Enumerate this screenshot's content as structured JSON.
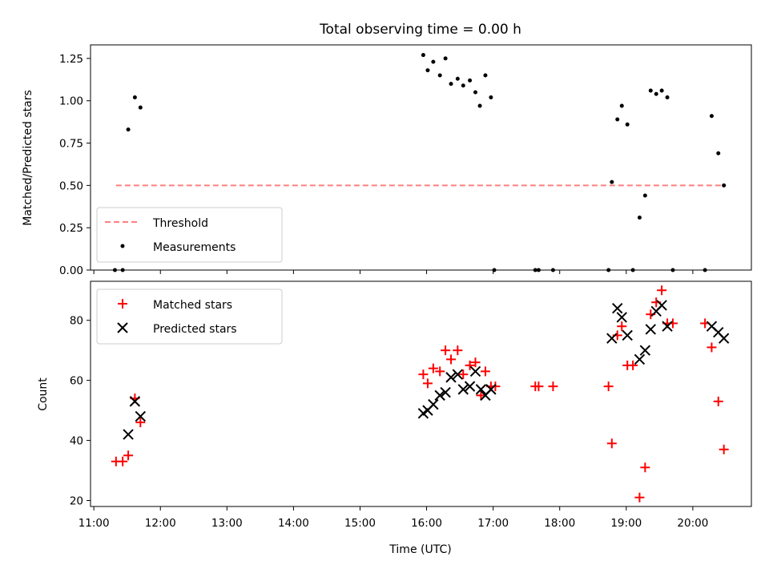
{
  "chart_data": [
    {
      "type": "scatter",
      "title": "Total observing time = 0.00 h",
      "xlabel": "",
      "ylabel": "Matched/Predicted stars",
      "xlim": [
        "11:00",
        "21:00"
      ],
      "ylim": [
        0,
        1.33
      ],
      "yticks": [
        "0.00",
        "0.25",
        "0.50",
        "0.75",
        "1.00",
        "1.25"
      ],
      "legend_position": "lower-left",
      "threshold": {
        "name": "Threshold",
        "color": "#ff7f7f",
        "y": 0.5,
        "x_start": "11:20",
        "x_end": "20:30"
      },
      "series": [
        {
          "name": "Measurements",
          "color": "#000000",
          "points": [
            [
              "11:19",
              0.0
            ],
            [
              "11:26",
              0.0
            ],
            [
              "11:31",
              0.83
            ],
            [
              "11:37",
              1.02
            ],
            [
              "11:42",
              0.96
            ],
            [
              "15:57",
              1.27
            ],
            [
              "16:01",
              1.18
            ],
            [
              "16:06",
              1.23
            ],
            [
              "16:12",
              1.15
            ],
            [
              "16:17",
              1.25
            ],
            [
              "16:22",
              1.1
            ],
            [
              "16:28",
              1.13
            ],
            [
              "16:33",
              1.09
            ],
            [
              "16:39",
              1.12
            ],
            [
              "16:44",
              1.05
            ],
            [
              "16:48",
              0.97
            ],
            [
              "16:53",
              1.15
            ],
            [
              "16:58",
              1.02
            ],
            [
              "17:01",
              0.0
            ],
            [
              "17:38",
              0.0
            ],
            [
              "17:41",
              0.0
            ],
            [
              "17:54",
              0.0
            ],
            [
              "18:44",
              0.0
            ],
            [
              "18:47",
              0.52
            ],
            [
              "18:52",
              0.89
            ],
            [
              "18:56",
              0.97
            ],
            [
              "19:01",
              0.86
            ],
            [
              "19:06",
              0.0
            ],
            [
              "19:12",
              0.31
            ],
            [
              "19:17",
              0.44
            ],
            [
              "19:22",
              1.06
            ],
            [
              "19:27",
              1.04
            ],
            [
              "19:32",
              1.06
            ],
            [
              "19:37",
              1.02
            ],
            [
              "19:42",
              0.0
            ],
            [
              "20:11",
              0.0
            ],
            [
              "20:17",
              0.91
            ],
            [
              "20:23",
              0.69
            ],
            [
              "20:28",
              0.5
            ]
          ]
        }
      ]
    },
    {
      "type": "scatter",
      "title": "",
      "xlabel": "Time (UTC)",
      "ylabel": "Count",
      "xlim": [
        "11:00",
        "21:00"
      ],
      "ylim": [
        18,
        93
      ],
      "yticks": [
        "20",
        "40",
        "60",
        "80"
      ],
      "xticks": [
        "11:00",
        "12:00",
        "13:00",
        "14:00",
        "15:00",
        "16:00",
        "17:00",
        "18:00",
        "19:00",
        "20:00"
      ],
      "legend_position": "upper-left",
      "series": [
        {
          "name": "Matched stars",
          "marker": "+",
          "color": "#ff0000",
          "points": [
            [
              "11:20",
              33
            ],
            [
              "11:26",
              33
            ],
            [
              "11:31",
              35
            ],
            [
              "11:37",
              54
            ],
            [
              "11:42",
              46
            ],
            [
              "15:57",
              62
            ],
            [
              "16:01",
              59
            ],
            [
              "16:06",
              64
            ],
            [
              "16:12",
              63
            ],
            [
              "16:17",
              70
            ],
            [
              "16:22",
              67
            ],
            [
              "16:28",
              70
            ],
            [
              "16:33",
              62
            ],
            [
              "16:39",
              65
            ],
            [
              "16:44",
              66
            ],
            [
              "16:49",
              55
            ],
            [
              "16:53",
              63
            ],
            [
              "16:58",
              58
            ],
            [
              "17:02",
              58
            ],
            [
              "17:38",
              58
            ],
            [
              "17:41",
              58
            ],
            [
              "17:54",
              58
            ],
            [
              "18:44",
              58
            ],
            [
              "18:47",
              39
            ],
            [
              "18:52",
              75
            ],
            [
              "18:56",
              78
            ],
            [
              "19:01",
              65
            ],
            [
              "19:06",
              65
            ],
            [
              "19:12",
              21
            ],
            [
              "19:17",
              31
            ],
            [
              "19:22",
              82
            ],
            [
              "19:27",
              86
            ],
            [
              "19:32",
              90
            ],
            [
              "19:37",
              79
            ],
            [
              "19:42",
              79
            ],
            [
              "20:11",
              79
            ],
            [
              "20:17",
              71
            ],
            [
              "20:23",
              53
            ],
            [
              "20:28",
              37
            ]
          ]
        },
        {
          "name": "Predicted stars",
          "marker": "x",
          "color": "#000000",
          "points": [
            [
              "11:31",
              42
            ],
            [
              "11:37",
              53
            ],
            [
              "11:42",
              48
            ],
            [
              "15:57",
              49
            ],
            [
              "16:01",
              50
            ],
            [
              "16:06",
              52
            ],
            [
              "16:12",
              55
            ],
            [
              "16:17",
              56
            ],
            [
              "16:22",
              61
            ],
            [
              "16:28",
              62
            ],
            [
              "16:33",
              57
            ],
            [
              "16:39",
              58
            ],
            [
              "16:44",
              63
            ],
            [
              "16:49",
              57
            ],
            [
              "16:53",
              55
            ],
            [
              "16:58",
              57
            ],
            [
              "18:47",
              74
            ],
            [
              "18:52",
              84
            ],
            [
              "18:56",
              81
            ],
            [
              "19:01",
              75
            ],
            [
              "19:12",
              67
            ],
            [
              "19:17",
              70
            ],
            [
              "19:22",
              77
            ],
            [
              "19:27",
              83
            ],
            [
              "19:32",
              85
            ],
            [
              "19:37",
              78
            ],
            [
              "20:17",
              78
            ],
            [
              "20:23",
              76
            ],
            [
              "20:28",
              74
            ]
          ]
        }
      ]
    }
  ]
}
